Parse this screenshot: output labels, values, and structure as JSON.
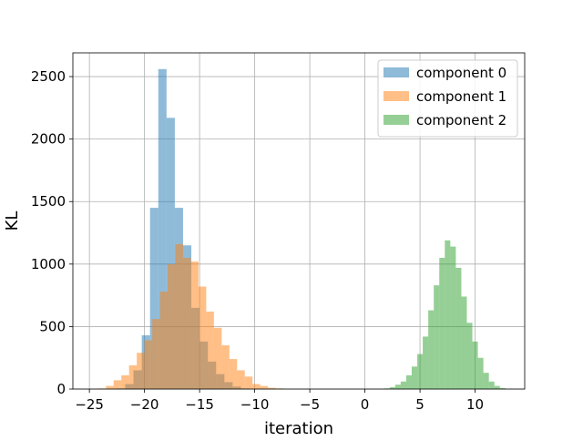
{
  "chart_data": {
    "type": "bar",
    "subtype": "overlapping-histogram",
    "title": "",
    "xlabel": "iteration",
    "ylabel": "KL",
    "xlim": [
      -26.5,
      14.5
    ],
    "ylim": [
      0,
      2690
    ],
    "x_ticks": [
      -25,
      -20,
      -15,
      -10,
      -5,
      0,
      5,
      10
    ],
    "x_tick_labels": [
      "−25",
      "−20",
      "−15",
      "−10",
      "−5",
      "0",
      "5",
      "10"
    ],
    "y_ticks": [
      0,
      500,
      1000,
      1500,
      2000,
      2500
    ],
    "y_tick_labels": [
      "0",
      "500",
      "1000",
      "1500",
      "2000",
      "2500"
    ],
    "grid": true,
    "legend_position": "upper-right",
    "bar_opacity": 0.5,
    "series": [
      {
        "name": "component 0",
        "color": "#1f77b4",
        "bin_width": 0.75,
        "bins": [
          [
            -22.5,
            5
          ],
          [
            -21.75,
            40
          ],
          [
            -21.0,
            150
          ],
          [
            -20.25,
            430
          ],
          [
            -19.5,
            1450
          ],
          [
            -18.75,
            2560
          ],
          [
            -18.0,
            2170
          ],
          [
            -17.25,
            1450
          ],
          [
            -16.5,
            1150
          ],
          [
            -15.75,
            650
          ],
          [
            -15.0,
            380
          ],
          [
            -14.25,
            220
          ],
          [
            -13.5,
            120
          ],
          [
            -12.75,
            55
          ],
          [
            -12.0,
            20
          ],
          [
            -11.25,
            5
          ]
        ]
      },
      {
        "name": "component 1",
        "color": "#ff7f0e",
        "bin_width": 0.7,
        "bins": [
          [
            -24.2,
            5
          ],
          [
            -23.5,
            25
          ],
          [
            -22.8,
            70
          ],
          [
            -22.1,
            110
          ],
          [
            -21.4,
            190
          ],
          [
            -20.7,
            290
          ],
          [
            -20.0,
            390
          ],
          [
            -19.3,
            560
          ],
          [
            -18.6,
            780
          ],
          [
            -17.9,
            1000
          ],
          [
            -17.2,
            1160
          ],
          [
            -16.5,
            1050
          ],
          [
            -15.8,
            1020
          ],
          [
            -15.1,
            820
          ],
          [
            -14.4,
            620
          ],
          [
            -13.7,
            490
          ],
          [
            -13.0,
            350
          ],
          [
            -12.3,
            240
          ],
          [
            -11.6,
            150
          ],
          [
            -10.9,
            100
          ],
          [
            -10.2,
            40
          ],
          [
            -9.5,
            25
          ],
          [
            -8.8,
            10
          ],
          [
            -8.1,
            5
          ]
        ]
      },
      {
        "name": "component 2",
        "color": "#2ca02c",
        "bin_width": 0.5,
        "bins": [
          [
            1.75,
            5
          ],
          [
            2.25,
            15
          ],
          [
            2.75,
            35
          ],
          [
            3.25,
            60
          ],
          [
            3.75,
            110
          ],
          [
            4.25,
            180
          ],
          [
            4.75,
            280
          ],
          [
            5.25,
            420
          ],
          [
            5.75,
            630
          ],
          [
            6.25,
            830
          ],
          [
            6.75,
            1050
          ],
          [
            7.25,
            1190
          ],
          [
            7.75,
            1140
          ],
          [
            8.25,
            970
          ],
          [
            8.75,
            740
          ],
          [
            9.25,
            530
          ],
          [
            9.75,
            380
          ],
          [
            10.25,
            250
          ],
          [
            10.75,
            130
          ],
          [
            11.25,
            60
          ],
          [
            11.75,
            25
          ],
          [
            12.25,
            8
          ]
        ]
      }
    ]
  }
}
